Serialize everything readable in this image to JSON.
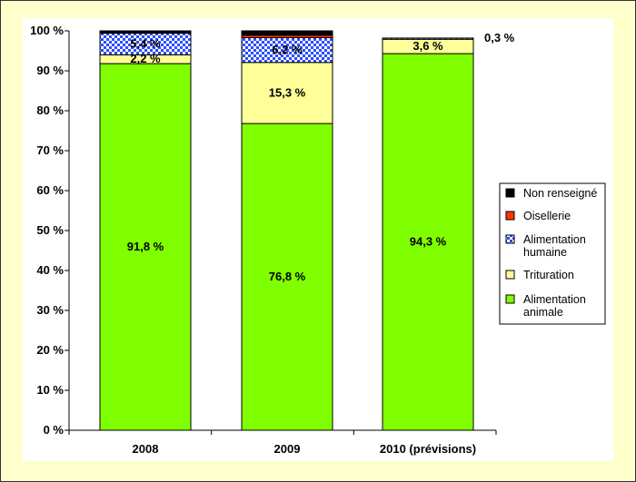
{
  "chart_data": {
    "type": "bar",
    "stacked": true,
    "categories": [
      "2008",
      "2009",
      "2010 (prévisions)"
    ],
    "series": [
      {
        "name": "Alimentation animale",
        "values": [
          91.8,
          76.8,
          94.3
        ],
        "color": "#80ff00",
        "pattern": "solid"
      },
      {
        "name": "Trituration",
        "values": [
          2.2,
          15.3,
          3.6
        ],
        "color": "#ffff99",
        "pattern": "solid"
      },
      {
        "name": "Alimentation humaine",
        "values": [
          5.4,
          6.2,
          0.3
        ],
        "color": "#2a4dff",
        "pattern": "checker"
      },
      {
        "name": "Oisellerie",
        "values": [
          0,
          0.6,
          0
        ],
        "color": "#ff3300",
        "pattern": "solid"
      },
      {
        "name": "Non renseigné",
        "values": [
          0.6,
          1.1,
          0
        ],
        "color": "#000000",
        "pattern": "solid"
      }
    ],
    "data_labels": [
      {
        "category": "2008",
        "series": "Alimentation animale",
        "text": "91,8 %"
      },
      {
        "category": "2008",
        "series": "Trituration",
        "text": "2,2 %"
      },
      {
        "category": "2008",
        "series": "Alimentation humaine",
        "text": "5,4 %"
      },
      {
        "category": "2009",
        "series": "Alimentation animale",
        "text": "76,8 %"
      },
      {
        "category": "2009",
        "series": "Trituration",
        "text": "15,3 %"
      },
      {
        "category": "2009",
        "series": "Alimentation humaine",
        "text": "6,2 %"
      },
      {
        "category": "2010 (prévisions)",
        "series": "Alimentation animale",
        "text": "94,3 %"
      },
      {
        "category": "2010 (prévisions)",
        "series": "Trituration",
        "text": "3,6 %"
      },
      {
        "category": "2010 (prévisions)",
        "series": "Alimentation humaine",
        "text": "0,3 %"
      }
    ],
    "y_ticks": [
      "0 %",
      "10 %",
      "20 %",
      "30 %",
      "40 %",
      "50 %",
      "60 %",
      "70 %",
      "80 %",
      "90 %",
      "100 %"
    ],
    "ylim": [
      0,
      100
    ],
    "grid": false,
    "legend_position": "right",
    "legend_order": [
      "Non renseigné",
      "Oisellerie",
      "Alimentation humaine",
      "Trituration",
      "Alimentation animale"
    ],
    "legend_entries": [
      {
        "series": "Non renseigné",
        "lines": [
          "Non renseigné"
        ]
      },
      {
        "series": "Oisellerie",
        "lines": [
          "Oisellerie"
        ]
      },
      {
        "series": "Alimentation humaine",
        "lines": [
          "Alimentation",
          "humaine"
        ]
      },
      {
        "series": "Trituration",
        "lines": [
          "Trituration"
        ]
      },
      {
        "series": "Alimentation animale",
        "lines": [
          "Alimentation",
          "animale"
        ]
      }
    ],
    "title": "",
    "xlabel": "",
    "ylabel": ""
  },
  "colors": {
    "background": "#ffffcc",
    "plot_background": "#ffffff"
  }
}
